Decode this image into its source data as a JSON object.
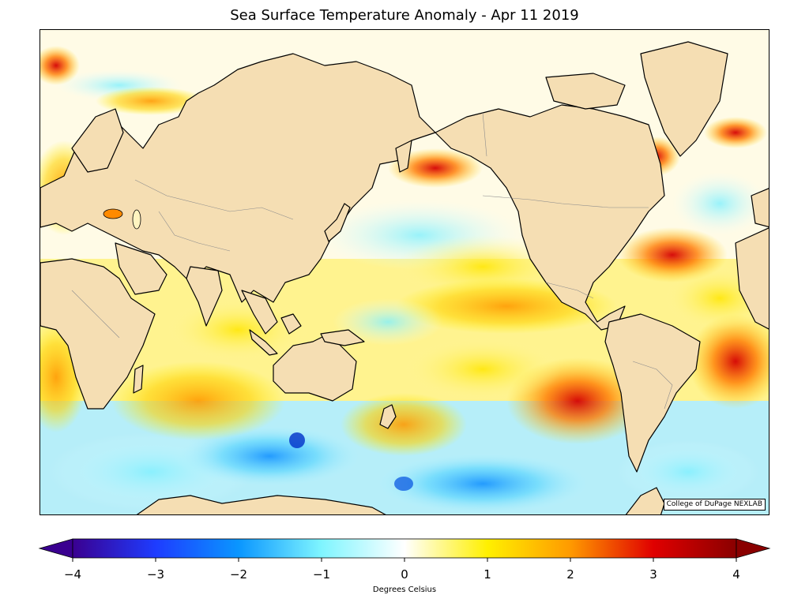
{
  "title": "Sea Surface Temperature Anomaly - Apr 11 2019",
  "credit": "College of DuPage NEXLAB",
  "colorbar": {
    "label": "Degrees Celsius",
    "ticks": [
      "−4",
      "−3",
      "−2",
      "−1",
      "0",
      "1",
      "2",
      "3",
      "4"
    ],
    "min": -4,
    "max": 4,
    "colors": {
      "land": "#f5deb3",
      "coast": "#000000",
      "border": "#8c8c8c",
      "ice": "#fffbe6"
    }
  }
}
